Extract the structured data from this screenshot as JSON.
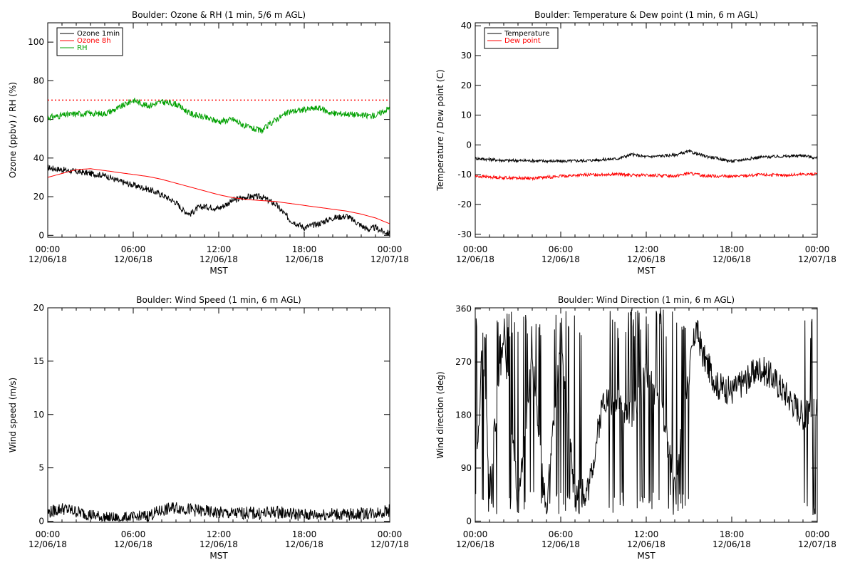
{
  "figure": {
    "x_axis_label": "MST",
    "x_ticks": [
      {
        "time": "00:00",
        "date": "12/06/18"
      },
      {
        "time": "06:00",
        "date": "12/06/18"
      },
      {
        "time": "12:00",
        "date": "12/06/18"
      },
      {
        "time": "18:00",
        "date": "12/06/18"
      },
      {
        "time": "00:00",
        "date": "12/07/18"
      }
    ]
  },
  "chart_data": [
    {
      "type": "line",
      "title": "Boulder: Ozone & RH (1 min, 5/6 m AGL)",
      "xlabel": "MST",
      "ylabel": "Ozone (ppbv) / RH (%)",
      "xlim": [
        "2018-12-06 00:00",
        "2018-12-07 00:00"
      ],
      "ylim": [
        -1,
        110
      ],
      "yticks": [
        0,
        20,
        40,
        60,
        80,
        100
      ],
      "legend_position": "top-left",
      "reference_lines": [
        {
          "y": 70,
          "style": "dotted",
          "color": "#ff0000"
        }
      ],
      "series": [
        {
          "name": "Ozone 1min",
          "color": "#000000",
          "x": [
            "00:00",
            "01:00",
            "02:00",
            "03:00",
            "04:00",
            "05:00",
            "06:00",
            "07:00",
            "08:00",
            "09:00",
            "09:30",
            "10:00",
            "10:30",
            "11:00",
            "12:00",
            "13:00",
            "14:00",
            "15:00",
            "16:00",
            "17:00",
            "18:00",
            "19:00",
            "20:00",
            "21:00",
            "22:00",
            "22:30",
            "23:00",
            "23:30",
            "24:00"
          ],
          "y": [
            35,
            34,
            33,
            32,
            31,
            28,
            26,
            24,
            21,
            17,
            13,
            11,
            14,
            15,
            14,
            18,
            20,
            20,
            16,
            8,
            4,
            6,
            9,
            10,
            5,
            3,
            4,
            2,
            1
          ]
        },
        {
          "name": "Ozone 8h",
          "color": "#ff0000",
          "x": [
            "00:00",
            "01:00",
            "02:00",
            "03:00",
            "04:00",
            "05:00",
            "06:00",
            "07:00",
            "08:00",
            "09:00",
            "10:00",
            "11:00",
            "12:00",
            "13:00",
            "14:00",
            "15:00",
            "16:00",
            "17:00",
            "18:00",
            "19:00",
            "20:00",
            "21:00",
            "22:00",
            "23:00",
            "24:00"
          ],
          "y": [
            30,
            32,
            34,
            34.5,
            33.5,
            32.5,
            31.5,
            30.5,
            29,
            27,
            25,
            23,
            21,
            19.5,
            18.5,
            18,
            17.5,
            16.5,
            15.5,
            14.5,
            13.5,
            12.5,
            11,
            9,
            6
          ]
        },
        {
          "name": "RH",
          "color": "#00a000",
          "x": [
            "00:00",
            "01:00",
            "02:00",
            "03:00",
            "04:00",
            "05:00",
            "06:00",
            "07:00",
            "08:00",
            "09:00",
            "10:00",
            "11:00",
            "12:00",
            "13:00",
            "14:00",
            "15:00",
            "16:00",
            "17:00",
            "18:00",
            "19:00",
            "20:00",
            "21:00",
            "22:00",
            "23:00",
            "24:00"
          ],
          "y": [
            61,
            62,
            63,
            63,
            63,
            66,
            70,
            67,
            69,
            68,
            63,
            61,
            59,
            60,
            56,
            54,
            60,
            64,
            65,
            66,
            63,
            63,
            62,
            62,
            66
          ]
        }
      ]
    },
    {
      "type": "line",
      "title": "Boulder: Temperature & Dew point (1 min, 6 m AGL)",
      "xlabel": "MST",
      "ylabel": "Temperature / Dew point (C)",
      "xlim": [
        "2018-12-06 00:00",
        "2018-12-07 00:00"
      ],
      "ylim": [
        -31,
        41
      ],
      "yticks": [
        -30,
        -20,
        -10,
        0,
        10,
        20,
        30,
        40
      ],
      "legend_position": "top-left",
      "series": [
        {
          "name": "Temperature",
          "color": "#000000",
          "x": [
            "00:00",
            "02:00",
            "04:00",
            "06:00",
            "08:00",
            "10:00",
            "11:00",
            "12:00",
            "14:00",
            "15:00",
            "16:00",
            "18:00",
            "20:00",
            "22:00",
            "23:00",
            "24:00"
          ],
          "y": [
            -4.5,
            -5.2,
            -5.3,
            -5.5,
            -5.2,
            -4.6,
            -3.2,
            -4.0,
            -3.4,
            -2.2,
            -3.6,
            -5.5,
            -4.1,
            -3.8,
            -3.5,
            -4.5
          ]
        },
        {
          "name": "Dew point",
          "color": "#ff0000",
          "x": [
            "00:00",
            "02:00",
            "04:00",
            "06:00",
            "08:00",
            "10:00",
            "11:00",
            "12:00",
            "14:00",
            "15:00",
            "16:00",
            "18:00",
            "20:00",
            "22:00",
            "23:00",
            "24:00"
          ],
          "y": [
            -10.5,
            -11.0,
            -11.2,
            -10.5,
            -10.0,
            -9.8,
            -10.2,
            -10.2,
            -10.4,
            -9.5,
            -10.3,
            -10.6,
            -10.0,
            -10.2,
            -9.8,
            -9.8
          ]
        }
      ]
    },
    {
      "type": "line",
      "title": "Boulder: Wind Speed (1 min, 6 m AGL)",
      "xlabel": "MST",
      "ylabel": "Wind speed (m/s)",
      "xlim": [
        "2018-12-06 00:00",
        "2018-12-07 00:00"
      ],
      "ylim": [
        -0.1,
        20
      ],
      "yticks": [
        0,
        5,
        10,
        15,
        20
      ],
      "series": [
        {
          "name": "",
          "color": "#000000",
          "x": [
            "00:00",
            "01:00",
            "02:00",
            "03:00",
            "04:00",
            "05:00",
            "06:00",
            "07:00",
            "08:00",
            "09:00",
            "10:00",
            "11:00",
            "12:00",
            "13:00",
            "14:00",
            "15:00",
            "16:00",
            "17:00",
            "18:00",
            "19:00",
            "20:00",
            "21:00",
            "22:00",
            "23:00",
            "24:00"
          ],
          "y": [
            0.8,
            1.2,
            0.9,
            0.6,
            0.3,
            0.2,
            0.3,
            0.5,
            1.0,
            1.3,
            1.1,
            0.9,
            0.8,
            0.7,
            0.8,
            0.7,
            0.9,
            0.7,
            0.6,
            0.6,
            0.7,
            0.6,
            0.7,
            0.8,
            1.0
          ]
        }
      ]
    },
    {
      "type": "line",
      "title": "Boulder: Wind Direction (1 min, 6 m AGL)",
      "xlabel": "MST",
      "ylabel": "Wind direction (deg)",
      "xlim": [
        "2018-12-06 00:00",
        "2018-12-07 00:00"
      ],
      "ylim": [
        -2,
        362
      ],
      "yticks": [
        0,
        90,
        180,
        270,
        360
      ],
      "series": [
        {
          "name": "",
          "color": "#000000",
          "x": [
            "00:00",
            "00:30",
            "01:00",
            "02:00",
            "03:00",
            "04:00",
            "05:00",
            "06:00",
            "07:00",
            "08:00",
            "09:00",
            "10:00",
            "11:00",
            "12:00",
            "13:00",
            "14:00",
            "15:00",
            "15:30",
            "16:00",
            "17:00",
            "18:00",
            "19:00",
            "20:00",
            "21:00",
            "22:00",
            "23:00",
            "24:00"
          ],
          "y": [
            40,
            300,
            60,
            320,
            30,
            280,
            20,
            300,
            40,
            60,
            210,
            200,
            180,
            250,
            200,
            60,
            250,
            330,
            280,
            230,
            220,
            240,
            260,
            240,
            210,
            180,
            190
          ]
        }
      ]
    }
  ]
}
